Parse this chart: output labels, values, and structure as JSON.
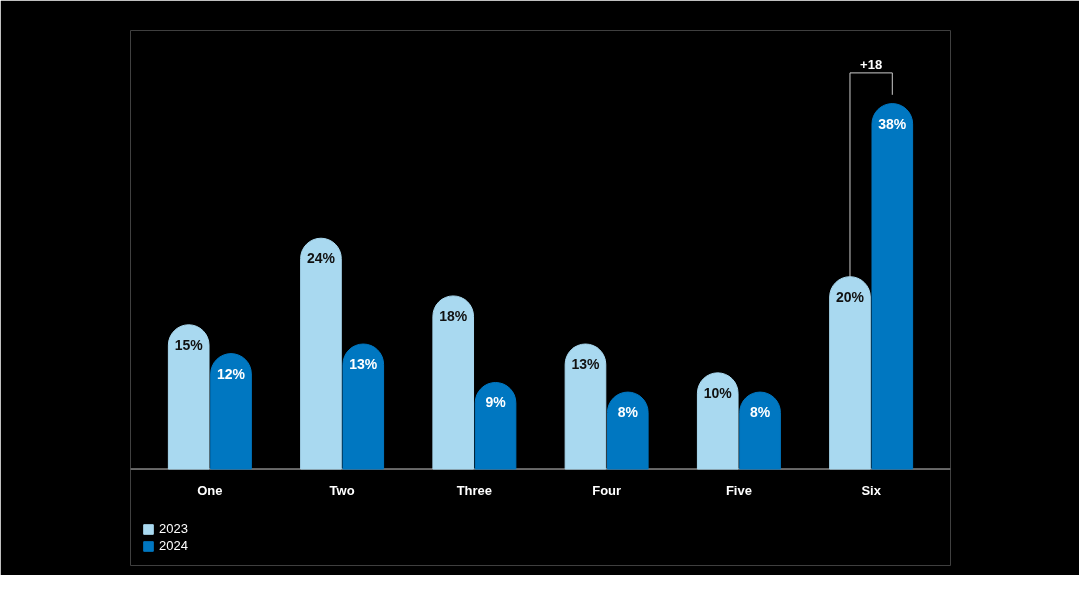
{
  "chart_data": {
    "type": "bar",
    "categories": [
      "One",
      "Two",
      "Three",
      "Four",
      "Five",
      "Six"
    ],
    "series": [
      {
        "name": "2023",
        "color": "#a9d9f0",
        "values": [
          15,
          24,
          18,
          13,
          10,
          20
        ],
        "value_labels": [
          "15%",
          "24%",
          "18%",
          "13%",
          "10%",
          "20%"
        ]
      },
      {
        "name": "2024",
        "color": "#0077c1",
        "values": [
          12,
          13,
          9,
          8,
          8,
          38
        ],
        "value_labels": [
          "12%",
          "13%",
          "9%",
          "8%",
          "8%",
          "38%"
        ]
      }
    ],
    "annotations": [
      "+18"
    ],
    "legend": "bottom left"
  }
}
